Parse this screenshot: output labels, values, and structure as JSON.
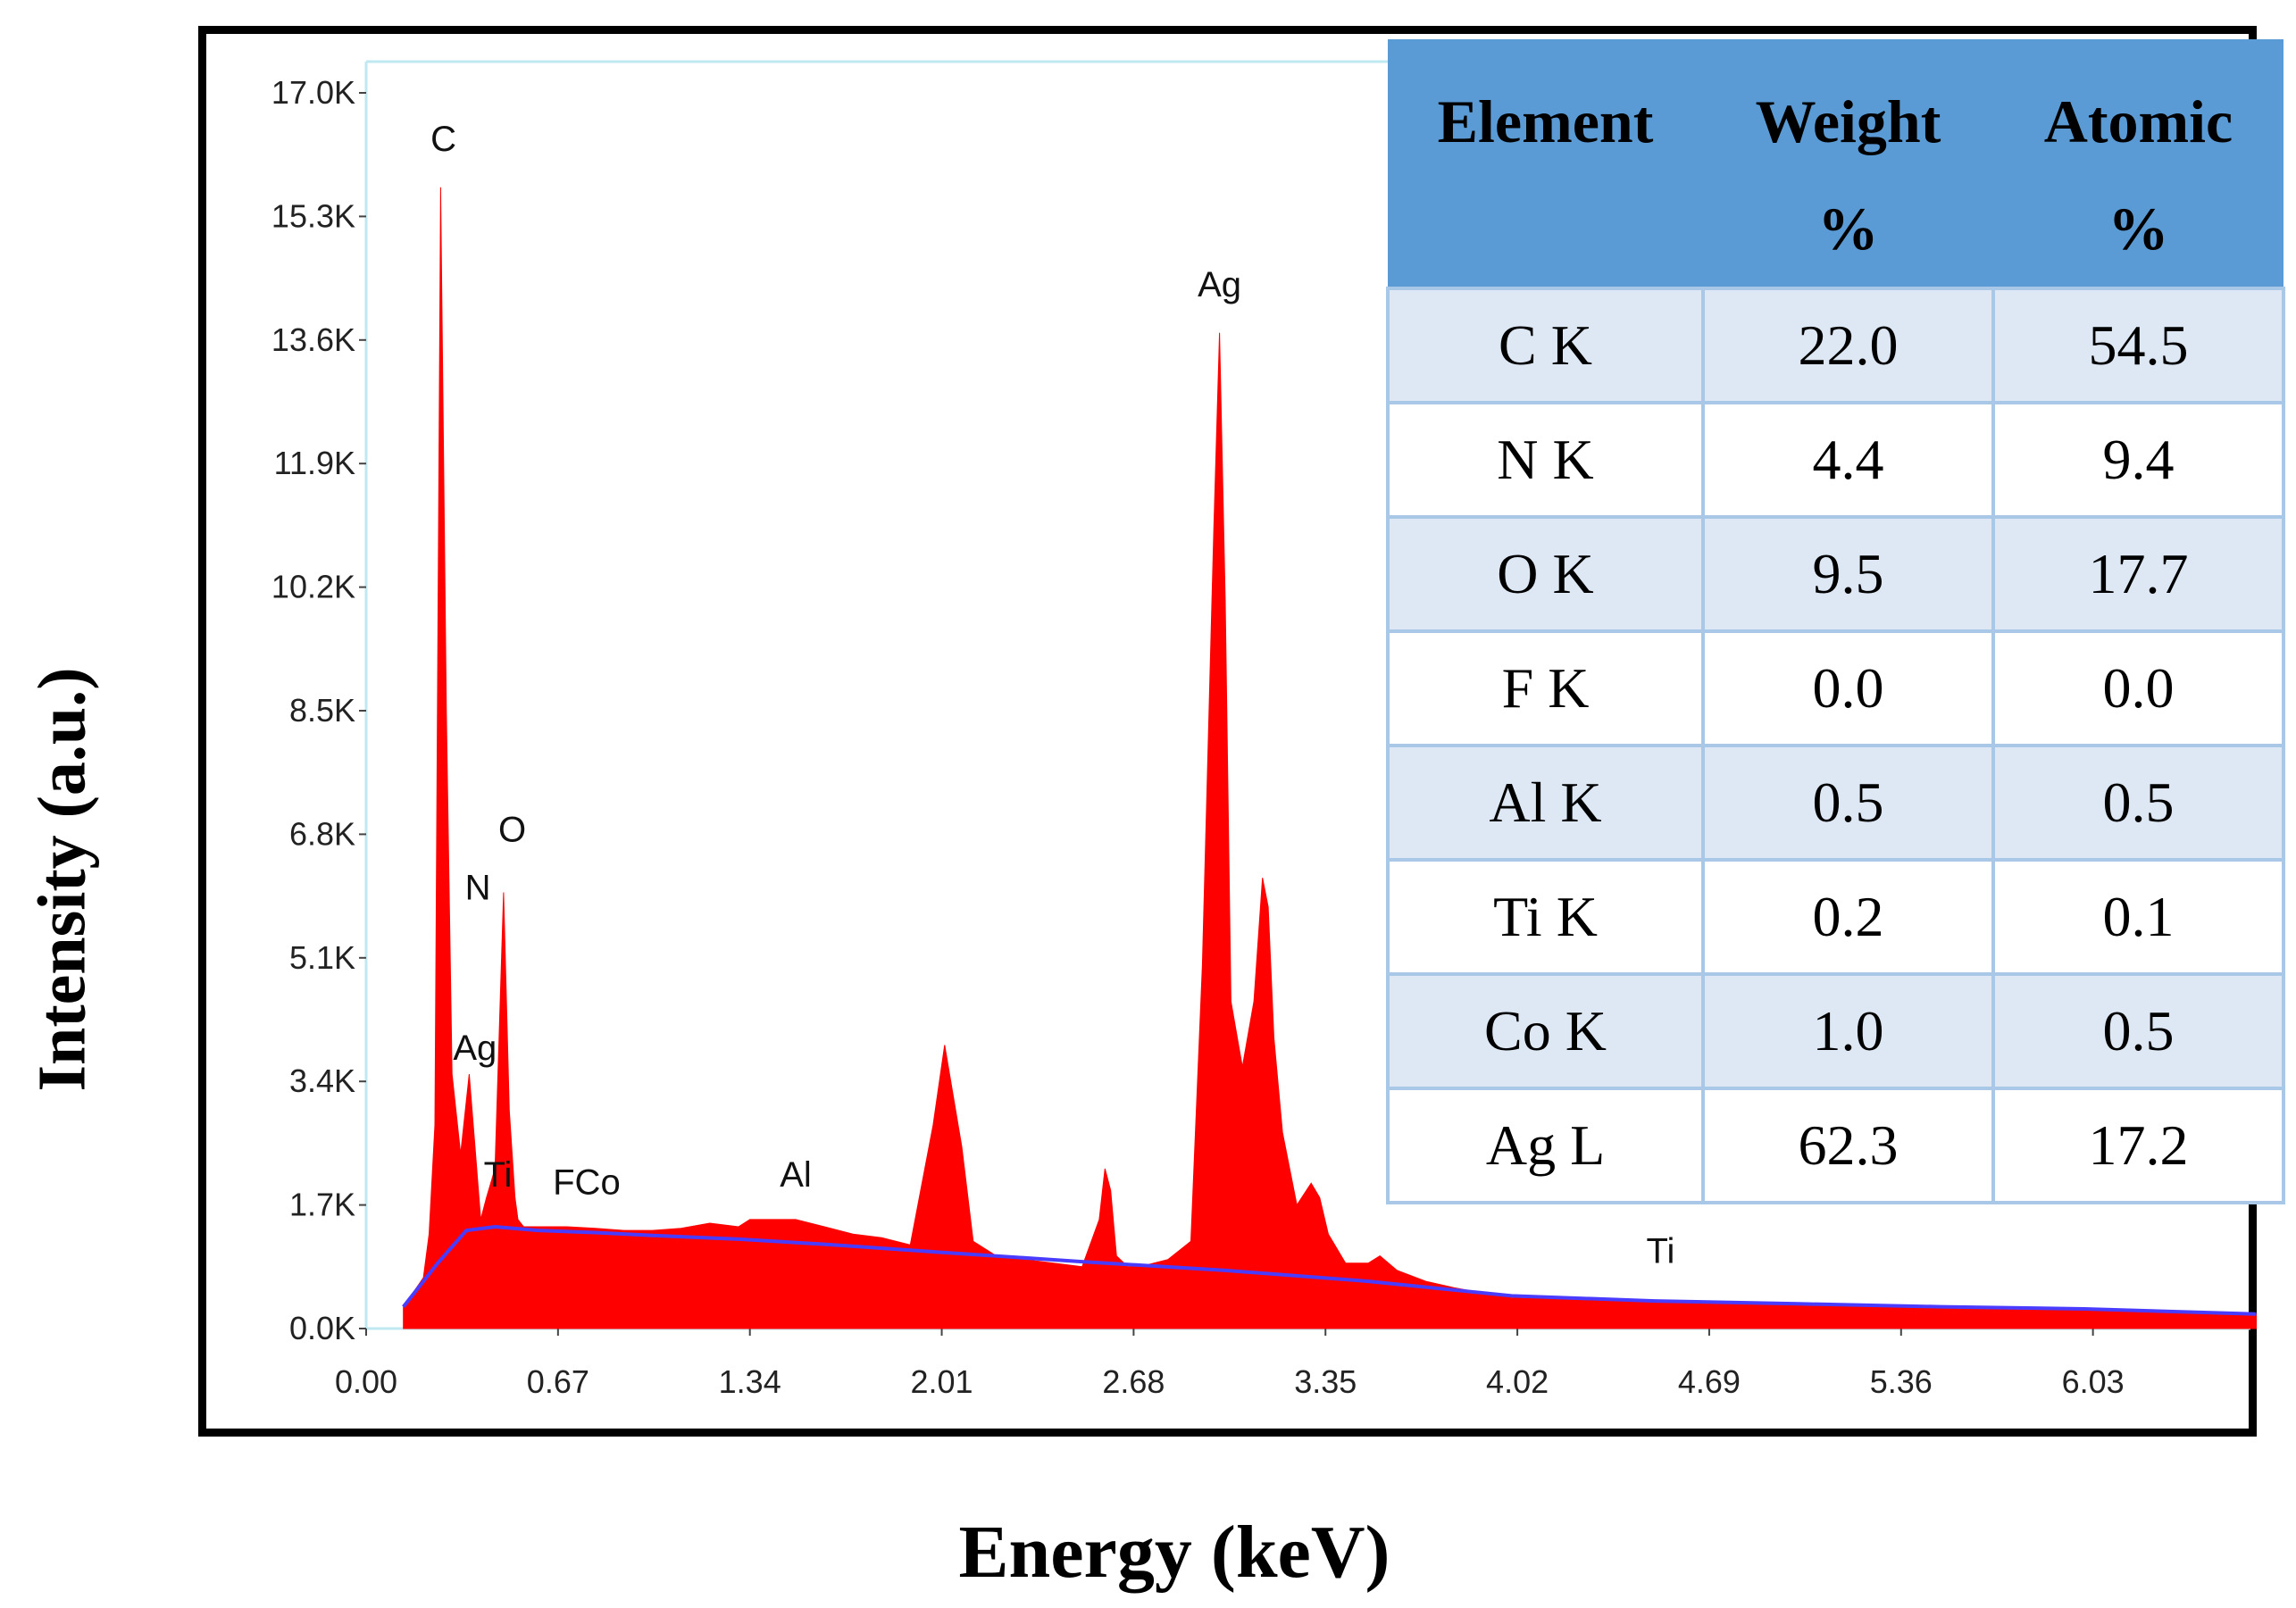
{
  "chart_data": {
    "type": "area",
    "title": "",
    "xlabel": "Energy (keV)",
    "ylabel": "Intensity (a.u.)",
    "xlim": [
      0.0,
      6.58
    ],
    "ylim": [
      0,
      17000
    ],
    "x_ticks": [
      "0.00",
      "0.67",
      "1.34",
      "2.01",
      "2.68",
      "3.35",
      "4.02",
      "4.69",
      "5.36",
      "6.03"
    ],
    "x_tick_values": [
      0.0,
      0.67,
      1.34,
      2.01,
      2.68,
      3.35,
      4.02,
      4.69,
      5.36,
      6.03
    ],
    "y_ticks": [
      "0.0K",
      "1.7K",
      "3.4K",
      "5.1K",
      "6.8K",
      "8.5K",
      "10.2K",
      "11.9K",
      "13.6K",
      "15.3K",
      "17.0K"
    ],
    "y_tick_values": [
      0,
      1700,
      3400,
      5100,
      6800,
      8500,
      10200,
      11900,
      13600,
      15300,
      17000
    ],
    "series": [
      {
        "name": "spectrum",
        "color": "#ff0000",
        "x": [
          0.13,
          0.2,
          0.22,
          0.24,
          0.26,
          0.28,
          0.3,
          0.33,
          0.36,
          0.38,
          0.4,
          0.42,
          0.45,
          0.48,
          0.5,
          0.52,
          0.53,
          0.55,
          0.57,
          0.6,
          0.7,
          0.8,
          0.9,
          1.0,
          1.1,
          1.2,
          1.3,
          1.34,
          1.4,
          1.5,
          1.6,
          1.7,
          1.8,
          1.9,
          1.98,
          2.02,
          2.05,
          2.08,
          2.12,
          2.2,
          2.3,
          2.4,
          2.5,
          2.56,
          2.58,
          2.6,
          2.62,
          2.66,
          2.7,
          2.8,
          2.88,
          2.92,
          2.96,
          2.98,
          3.0,
          3.02,
          3.06,
          3.1,
          3.13,
          3.15,
          3.17,
          3.2,
          3.25,
          3.3,
          3.33,
          3.36,
          3.42,
          3.5,
          3.54,
          3.6,
          3.7,
          3.8,
          4.0,
          4.4,
          4.8,
          5.2,
          5.6,
          6.0,
          6.4,
          6.6
        ],
        "y": [
          300,
          700,
          1300,
          2800,
          15700,
          8500,
          3500,
          2400,
          3500,
          2500,
          1500,
          1800,
          2200,
          6000,
          3000,
          1800,
          1500,
          1400,
          1400,
          1400,
          1400,
          1380,
          1350,
          1350,
          1380,
          1450,
          1400,
          1500,
          1500,
          1500,
          1400,
          1300,
          1250,
          1150,
          2800,
          3900,
          3200,
          2500,
          1200,
          1000,
          950,
          900,
          850,
          1500,
          2200,
          1900,
          1000,
          850,
          850,
          950,
          1200,
          5000,
          11000,
          13700,
          10000,
          4500,
          3600,
          4500,
          6200,
          5800,
          4000,
          2700,
          1700,
          2000,
          1800,
          1300,
          900,
          900,
          1000,
          800,
          650,
          560,
          420,
          380,
          350,
          320,
          300,
          270,
          220,
          200
        ]
      },
      {
        "name": "background",
        "color": "#4a3cff",
        "x": [
          0.13,
          0.25,
          0.35,
          0.45,
          0.6,
          0.8,
          1.0,
          1.3,
          1.6,
          2.0,
          2.5,
          3.0,
          3.5,
          4.0,
          4.5,
          5.0,
          5.5,
          6.0,
          6.6
        ],
        "y": [
          300,
          900,
          1350,
          1400,
          1350,
          1320,
          1280,
          1230,
          1160,
          1050,
          920,
          800,
          650,
          450,
          380,
          340,
          300,
          270,
          200
        ]
      }
    ],
    "peak_labels": [
      {
        "text": "C",
        "x": 0.27,
        "y": 16200
      },
      {
        "text": "N",
        "x": 0.39,
        "y": 5900
      },
      {
        "text": "O",
        "x": 0.51,
        "y": 6700
      },
      {
        "text": "Ag",
        "x": 0.38,
        "y": 3700
      },
      {
        "text": "Ti",
        "x": 0.46,
        "y": 1950
      },
      {
        "text": "FCo",
        "x": 0.77,
        "y": 1850
      },
      {
        "text": "Al",
        "x": 1.5,
        "y": 1950
      },
      {
        "text": "Ag",
        "x": 2.98,
        "y": 14200
      },
      {
        "text": "Ti",
        "x": 4.52,
        "y": 900
      }
    ]
  },
  "table": {
    "headers": [
      [
        "Element"
      ],
      [
        "Weight",
        "%"
      ],
      [
        "Atomic",
        "%"
      ]
    ],
    "rows": [
      [
        "C K",
        "22.0",
        "54.5"
      ],
      [
        "N K",
        "4.4",
        "9.4"
      ],
      [
        "O K",
        "9.5",
        "17.7"
      ],
      [
        "F K",
        "0.0",
        "0.0"
      ],
      [
        "Al K",
        "0.5",
        "0.5"
      ],
      [
        "Ti K",
        "0.2",
        "0.1"
      ],
      [
        "Co K",
        "1.0",
        "0.5"
      ],
      [
        "Ag L",
        "62.3",
        "17.2"
      ]
    ]
  }
}
